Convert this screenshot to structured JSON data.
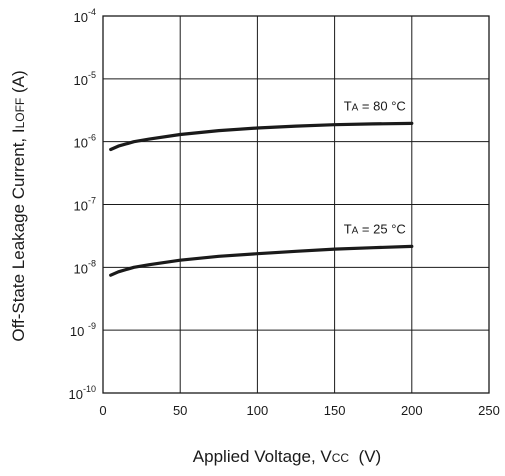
{
  "chart_data": {
    "type": "line",
    "title": "",
    "xlabel": {
      "text": "Applied Voltage, ",
      "symbol": "V",
      "sub": "CC",
      "unit": "  (V)"
    },
    "ylabel": {
      "text": "Off-State Leakage Current, ",
      "symbol": "I",
      "sub": "LOFF",
      "unit": " (A)"
    },
    "x_scale": "linear",
    "y_scale": "log",
    "xlim": [
      0,
      250
    ],
    "ylim": [
      1e-10,
      0.0001
    ],
    "x_ticks": [
      0,
      50,
      100,
      150,
      200,
      250
    ],
    "x_tick_labels": [
      "0",
      "50",
      "100",
      "150",
      "200",
      "250"
    ],
    "y_ticks": [
      -10,
      -9,
      -8,
      -7,
      -6,
      -5,
      -4
    ],
    "y_tick_labels": [
      {
        "base": "10",
        "exp": "-10"
      },
      {
        "base": "10 ",
        "exp": "-9"
      },
      {
        "base": "10",
        "exp": "-8"
      },
      {
        "base": "10",
        "exp": "-7"
      },
      {
        "base": "10",
        "exp": "-6"
      },
      {
        "base": "10",
        "exp": "-5"
      },
      {
        "base": "10",
        "exp": "-4"
      }
    ],
    "grid": true,
    "series": [
      {
        "label": {
          "sym": "T",
          "sub": "A",
          "rest": " = 80 °C"
        },
        "color": "#1a1a1a",
        "x": [
          5,
          10,
          20,
          30,
          50,
          75,
          100,
          125,
          150,
          175,
          200
        ],
        "y": [
          7.5e-07,
          8.5e-07,
          1e-06,
          1.1e-06,
          1.3e-06,
          1.5e-06,
          1.65e-06,
          1.77e-06,
          1.86e-06,
          1.92e-06,
          1.95e-06
        ]
      },
      {
        "label": {
          "sym": "T",
          "sub": "A",
          "rest": " = 25 °C"
        },
        "color": "#1a1a1a",
        "x": [
          5,
          10,
          20,
          30,
          50,
          75,
          100,
          125,
          150,
          175,
          200
        ],
        "y": [
          7.5e-09,
          8.5e-09,
          1e-08,
          1.1e-08,
          1.3e-08,
          1.5e-08,
          1.65e-08,
          1.8e-08,
          1.95e-08,
          2.05e-08,
          2.15e-08
        ]
      }
    ]
  }
}
